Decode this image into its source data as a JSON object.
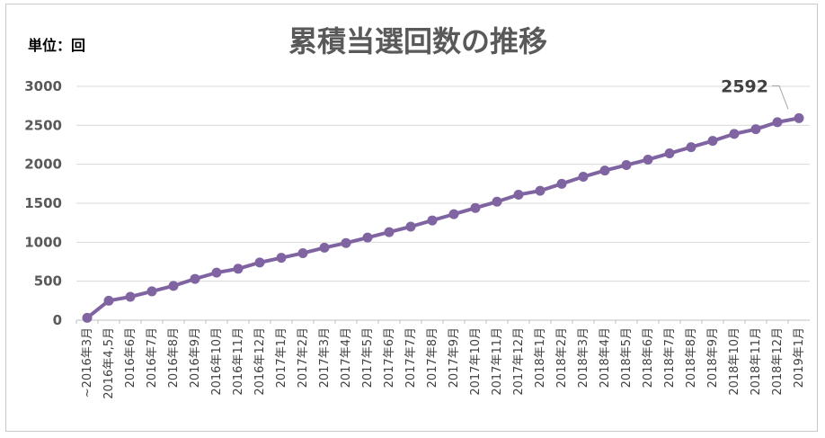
{
  "chart_data": {
    "type": "line",
    "title": "累積当選回数の推移",
    "unit_label": "単位：回",
    "ylim": [
      0,
      3000
    ],
    "yticks": [
      0,
      500,
      1000,
      1500,
      2000,
      2500,
      3000
    ],
    "grid": true,
    "legend": "none",
    "line_color": "#8064a2",
    "categories": [
      "~2016年3月",
      "2016年4,5月",
      "2016年6月",
      "2016年7月",
      "2016年8月",
      "2016年9月",
      "2016年10月",
      "2016年11月",
      "2016年12月",
      "2017年1月",
      "2017年2月",
      "2017年3月",
      "2017年4月",
      "2017年5月",
      "2017年6月",
      "2017年7月",
      "2017年8月",
      "2017年9月",
      "2017年10月",
      "2017年11月",
      "2017年12月",
      "2018年1月",
      "2018年2月",
      "2018年3月",
      "2018年4月",
      "2018年5月",
      "2018年6月",
      "2018年7月",
      "2018年8月",
      "2018年9月",
      "2018年10月",
      "2018年11月",
      "2018年12月",
      "2019年1月"
    ],
    "values": [
      30,
      250,
      300,
      370,
      440,
      530,
      610,
      660,
      740,
      800,
      860,
      930,
      990,
      1060,
      1130,
      1200,
      1280,
      1360,
      1440,
      1520,
      1610,
      1660,
      1750,
      1840,
      1920,
      1990,
      2060,
      2140,
      2220,
      2300,
      2390,
      2450,
      2540,
      2592
    ],
    "data_label": {
      "index": 33,
      "text": "2592"
    }
  }
}
